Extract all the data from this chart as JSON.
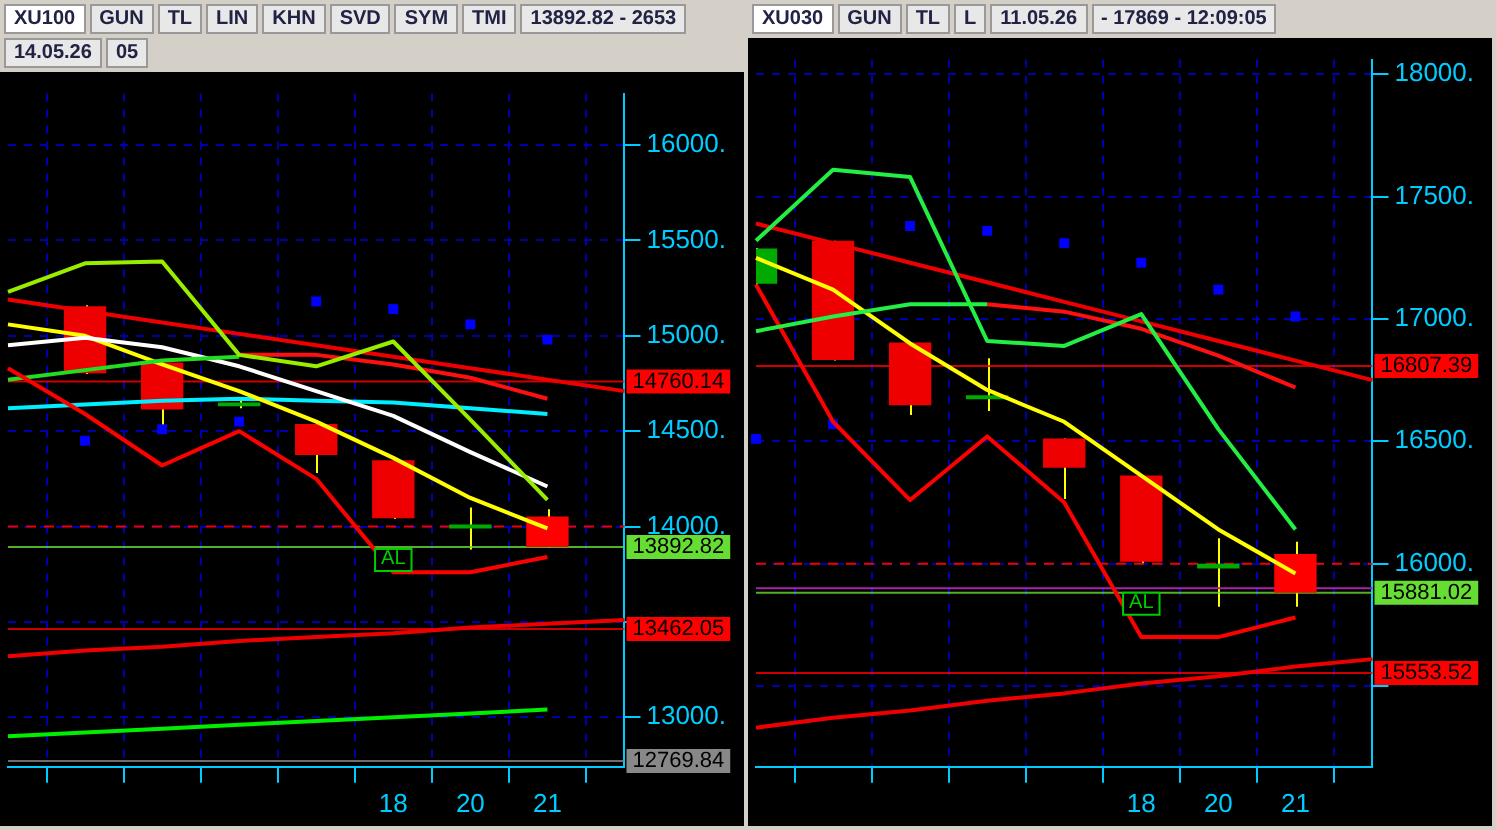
{
  "chart_data": [
    {
      "type": "candlestick",
      "title": "XU100",
      "annotations": [
        "GUN",
        "TL",
        "LIN",
        "KHN",
        "SVD",
        "SYM",
        "TMI",
        "13892.82 - 2653",
        "14.05.26",
        "05",
        {
          "text": "AL",
          "x": "18",
          "y": 13830
        }
      ],
      "categories": [
        null,
        null,
        null,
        null,
        null,
        "18",
        "20",
        "21",
        null
      ],
      "ohlc": [
        null,
        [
          15155,
          15160,
          14800,
          14803
        ],
        [
          14860,
          14860,
          14520,
          14613
        ],
        [
          14630,
          14660,
          14620,
          14650
        ],
        [
          14537,
          14540,
          14280,
          14375
        ],
        [
          14347,
          14350,
          14040,
          14043
        ],
        [
          13990,
          14100,
          13880,
          14010
        ],
        [
          14052,
          14090,
          13890,
          13892.82
        ],
        null
      ],
      "colors": [
        null,
        "#ee0000",
        "#ee0000",
        "#00aa00",
        "#ee0000",
        "#ee0000",
        "#00aa00",
        "#ff0000",
        null
      ],
      "series": [
        {
          "type": "line",
          "color": "#99ee00",
          "values": [
            15230,
            15380,
            15390,
            14900,
            14840,
            14970,
            14560,
            14140,
            null
          ]
        },
        {
          "type": "line",
          "color": "#ff0000",
          "values": [
            14830,
            14590,
            14320,
            14500,
            14250,
            13760,
            13760,
            13840,
            null
          ]
        },
        {
          "type": "line",
          "color": "#ff1010",
          "values": [
            null,
            null,
            null,
            14900,
            14900,
            14850,
            14780,
            14670,
            null
          ]
        },
        {
          "type": "line",
          "color": "#22dd22",
          "values": [
            14770,
            14820,
            14870,
            14890,
            null,
            null,
            null,
            null,
            null
          ]
        },
        {
          "type": "line",
          "color": "#ffffff",
          "values": [
            14950,
            14990,
            14940,
            14840,
            14710,
            14580,
            14390,
            14210,
            null
          ]
        },
        {
          "type": "line",
          "color": "#ffff00",
          "values": [
            15060,
            15000,
            14850,
            14710,
            14550,
            14360,
            14150,
            13990,
            null
          ]
        },
        {
          "type": "line",
          "color": "#00eeff",
          "values": [
            14620,
            14640,
            14660,
            14670,
            14660,
            14650,
            14620,
            14590,
            null
          ]
        },
        {
          "type": "scatter",
          "color": "#0000ff",
          "marker": "square",
          "values": [
            null,
            14450,
            14510,
            14550,
            15180,
            15140,
            15060,
            14980,
            null
          ]
        },
        {
          "type": "line",
          "color": "#ee0000",
          "values": [
            15190,
            15130,
            15070,
            15010,
            14950,
            14890,
            14830,
            14770,
            14710
          ]
        },
        {
          "type": "line",
          "color": "#ee0000",
          "values": [
            13320,
            13350,
            13370,
            13400,
            13420,
            13440,
            13470,
            13490,
            13510
          ]
        },
        {
          "type": "line",
          "color": "#00ee00",
          "values": [
            12900,
            12920,
            12940,
            12960,
            12980,
            13000,
            13020,
            13040,
            null
          ]
        }
      ],
      "ylim": [
        12740,
        16270
      ],
      "yticks": [
        {
          "value": 13000,
          "label": "13000."
        },
        {
          "value": 13500,
          "label": null
        },
        {
          "value": 14000,
          "label": "14000."
        },
        {
          "value": 14500,
          "label": "14500."
        },
        {
          "value": 15000,
          "label": "15000."
        },
        {
          "value": 15500,
          "label": "15500."
        },
        {
          "value": 16000,
          "label": "16000."
        }
      ],
      "grid": true,
      "legend": false,
      "ref_lines": [
        {
          "axis": "y",
          "value": 14000,
          "color": "#ee0000",
          "line_style": "dashed"
        },
        {
          "axis": "y",
          "value": 14760.14,
          "label": "14760.14",
          "color": "#ff0000"
        },
        {
          "axis": "y",
          "value": 13892.82,
          "label": "13892.82",
          "color": "#66dd33"
        },
        {
          "axis": "y",
          "value": 13462.05,
          "label": "13462.05",
          "color": "#ff0000"
        },
        {
          "axis": "y",
          "value": 12769.84,
          "label": "12769.84",
          "color": "#888888"
        }
      ]
    },
    {
      "type": "candlestick",
      "title": "XU030",
      "annotations": [
        "GUN",
        "TL",
        "L",
        "11.05.26",
        "- 17869 - 12:09:05",
        {
          "text": "AL",
          "x": "18",
          "y": 15840
        }
      ],
      "categories": [
        null,
        null,
        null,
        null,
        null,
        "18",
        "20",
        "21",
        null
      ],
      "ohlc": [
        [
          17144,
          17290,
          17140,
          17288
        ],
        [
          17320,
          17320,
          16830,
          16832
        ],
        [
          16904,
          16904,
          16608,
          16648
        ],
        [
          16672,
          16840,
          16624,
          16688
        ],
        [
          16512,
          16512,
          16264,
          16392
        ],
        [
          16360,
          16360,
          16000,
          16008
        ],
        [
          15980,
          16104,
          15824,
          16000
        ],
        [
          16040,
          16090,
          15824,
          15881.02
        ],
        null
      ],
      "colors": [
        "#00aa00",
        "#ee0000",
        "#ee0000",
        "#00aa00",
        "#ee0000",
        "#ee0000",
        "#00aa00",
        "#ff0000",
        null
      ],
      "series": [
        {
          "type": "line",
          "color": "#22ee44",
          "values": [
            17320,
            17610,
            17580,
            16910,
            16890,
            17020,
            16550,
            16140,
            null
          ]
        },
        {
          "type": "line",
          "color": "#22ee44",
          "values": [
            16950,
            17010,
            17060,
            17060,
            null,
            null,
            null,
            null,
            null
          ]
        },
        {
          "type": "line",
          "color": "#ff1010",
          "values": [
            null,
            null,
            null,
            17060,
            17030,
            16960,
            16850,
            16720,
            null
          ]
        },
        {
          "type": "line",
          "color": "#ffff00",
          "values": [
            17250,
            17120,
            16900,
            16710,
            16580,
            16360,
            16140,
            15960,
            null
          ]
        },
        {
          "type": "line",
          "color": "#ff0000",
          "values": [
            17140,
            16580,
            16260,
            16520,
            16250,
            15700,
            15700,
            15780,
            null
          ]
        },
        {
          "type": "scatter",
          "color": "#0000ff",
          "marker": "square",
          "values": [
            16510,
            16570,
            17380,
            17360,
            17310,
            17230,
            17120,
            17010,
            null
          ]
        },
        {
          "type": "line",
          "color": "#ee0000",
          "values": [
            17390,
            17310,
            17230,
            17150,
            17070,
            16990,
            16910,
            16830,
            16750
          ]
        },
        {
          "type": "line",
          "color": "#ee0000",
          "values": [
            15330,
            15370,
            15400,
            15440,
            15470,
            15510,
            15540,
            15580,
            15610
          ]
        }
      ],
      "ylim": [
        15170,
        18060
      ],
      "yticks": [
        {
          "value": 15500,
          "label": null
        },
        {
          "value": 16000,
          "label": "16000."
        },
        {
          "value": 16500,
          "label": "16500."
        },
        {
          "value": 17000,
          "label": "17000."
        },
        {
          "value": 17500,
          "label": "17500."
        },
        {
          "value": 18000,
          "label": "18000."
        }
      ],
      "grid": true,
      "legend": false,
      "ref_lines": [
        {
          "axis": "y",
          "value": 16000,
          "color": "#ee0000",
          "line_style": "dashed"
        },
        {
          "axis": "y",
          "value": 15900,
          "color": "#aa22aa"
        },
        {
          "axis": "y",
          "value": 16807.39,
          "label": "16807.39",
          "color": "#ff0000"
        },
        {
          "axis": "y",
          "value": 15881.02,
          "label": "15881.02",
          "color": "#66dd33"
        },
        {
          "axis": "y",
          "value": 15553.52,
          "label": "15553.52",
          "color": "#ff0000"
        }
      ]
    }
  ]
}
